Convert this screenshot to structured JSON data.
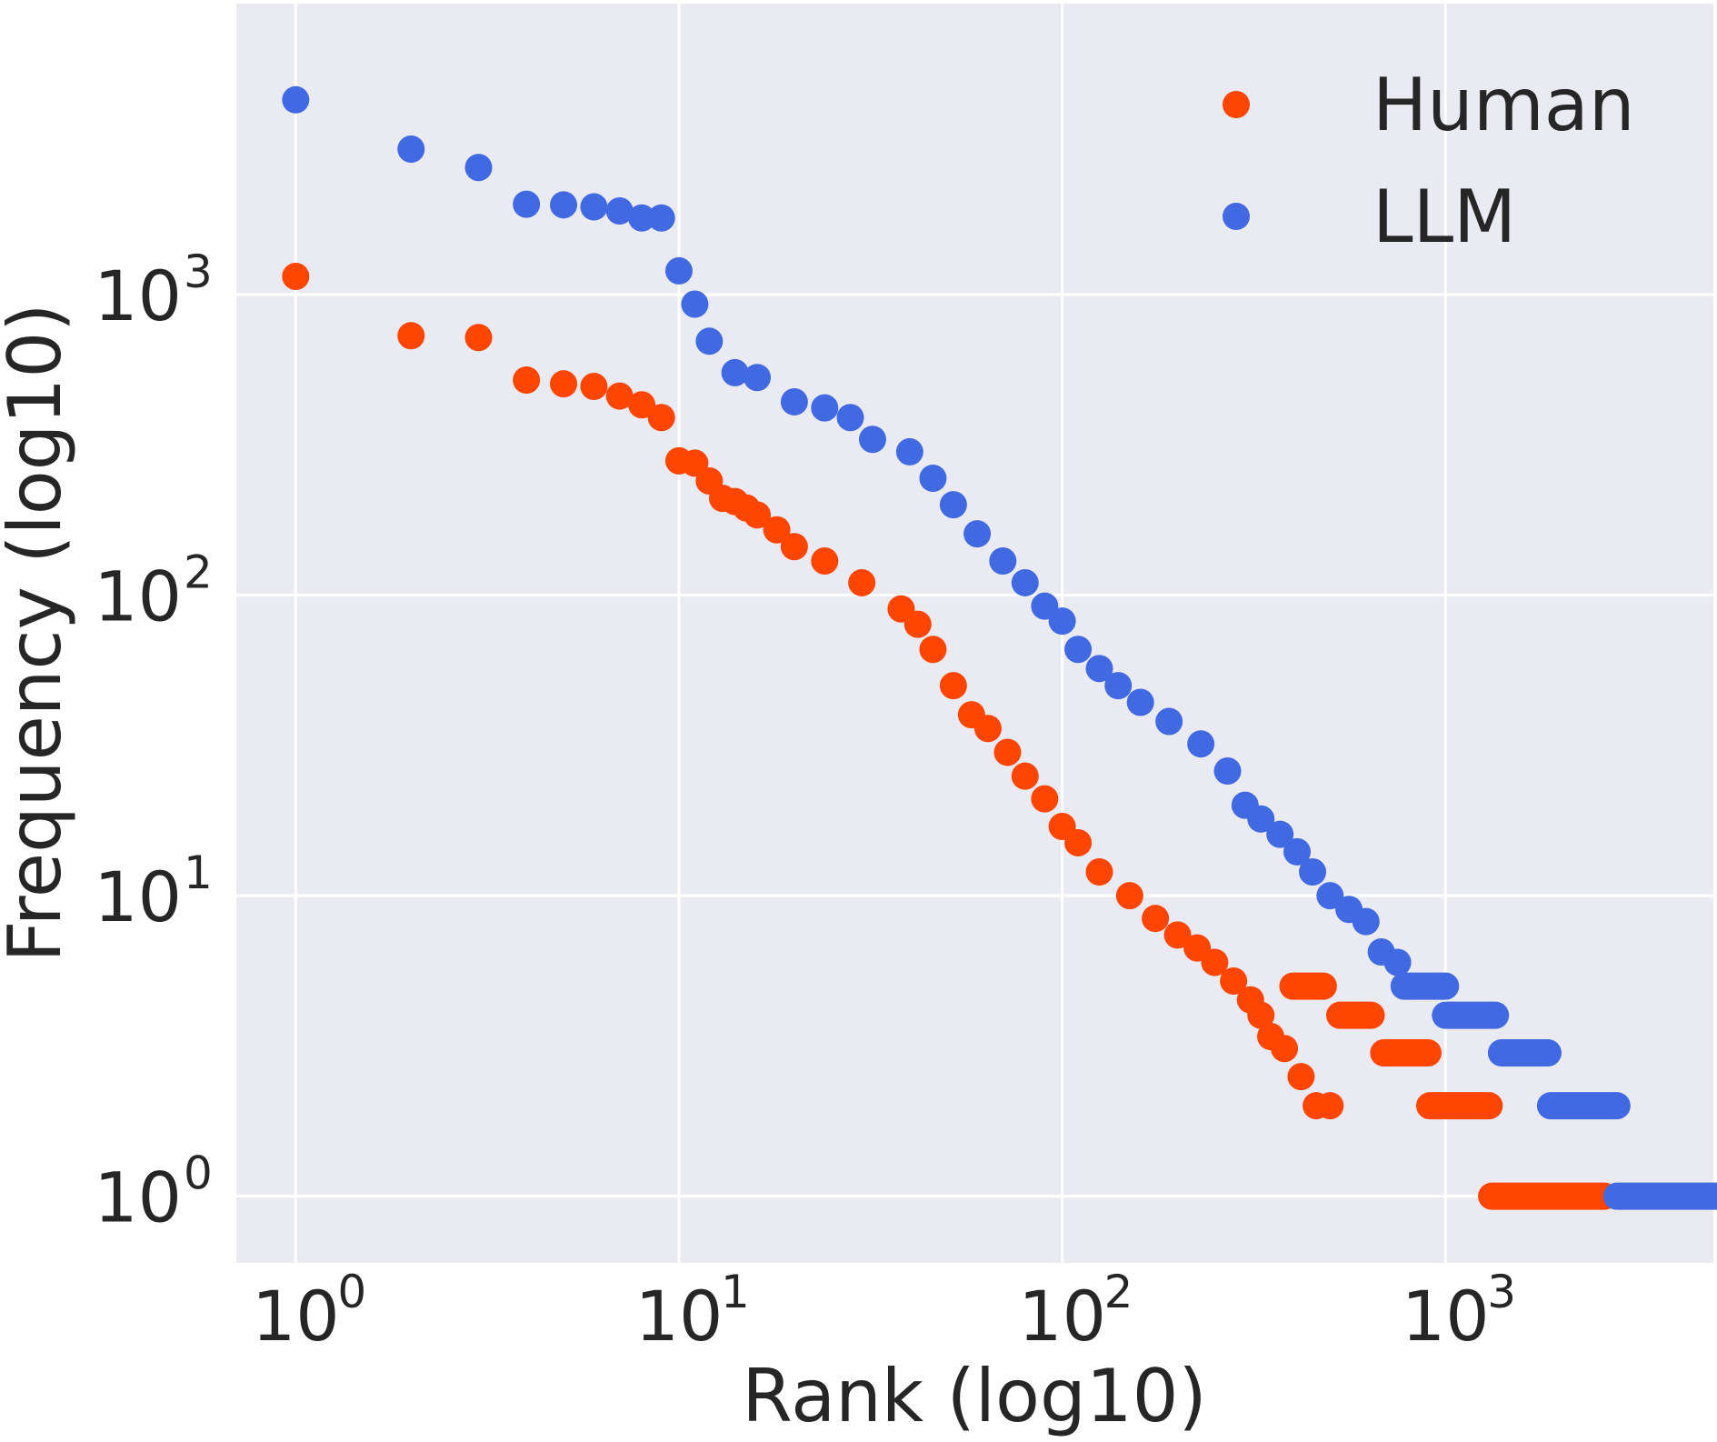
{
  "chart_data": {
    "type": "scatter",
    "xscale": "log",
    "yscale": "log",
    "xlabel": "Rank (log10)",
    "ylabel": "Frequency (log10)",
    "xlim": [
      0.7,
      5000
    ],
    "ylim": [
      0.6,
      9300
    ],
    "grid": true,
    "legend_position": "top-right",
    "xticks": [
      {
        "value": 1,
        "base": "10",
        "exp": "0"
      },
      {
        "value": 10,
        "base": "10",
        "exp": "1"
      },
      {
        "value": 100,
        "base": "10",
        "exp": "2"
      },
      {
        "value": 1000,
        "base": "10",
        "exp": "3"
      }
    ],
    "yticks": [
      {
        "value": 1,
        "base": "10",
        "exp": "0"
      },
      {
        "value": 10,
        "base": "10",
        "exp": "1"
      },
      {
        "value": 100,
        "base": "10",
        "exp": "2"
      },
      {
        "value": 1000,
        "base": "10",
        "exp": "3"
      }
    ],
    "series": [
      {
        "name": "Human",
        "color": "#FF4500",
        "points": [
          [
            1,
            1150
          ],
          [
            2,
            730
          ],
          [
            3,
            720
          ],
          [
            4,
            520
          ],
          [
            5,
            505
          ],
          [
            6,
            495
          ],
          [
            7,
            460
          ],
          [
            8,
            430
          ],
          [
            9,
            390
          ],
          [
            10,
            280
          ],
          [
            11,
            275
          ],
          [
            12,
            240
          ],
          [
            13,
            210
          ],
          [
            14,
            205
          ],
          [
            15,
            195
          ],
          [
            16,
            185
          ],
          [
            18,
            165
          ],
          [
            20,
            145
          ],
          [
            24,
            130
          ],
          [
            30,
            110
          ],
          [
            38,
            90
          ],
          [
            42,
            80
          ],
          [
            46,
            66
          ],
          [
            52,
            50
          ],
          [
            58,
            40
          ],
          [
            64,
            36
          ],
          [
            72,
            30
          ],
          [
            80,
            25
          ],
          [
            90,
            21
          ],
          [
            100,
            17
          ],
          [
            110,
            15
          ],
          [
            125,
            12
          ],
          [
            150,
            10
          ],
          [
            175,
            8.4
          ],
          [
            200,
            7.4
          ],
          [
            225,
            6.7
          ],
          [
            250,
            6
          ],
          [
            280,
            5.2
          ],
          [
            310,
            4.5
          ],
          [
            330,
            4
          ],
          [
            350,
            3.4
          ],
          [
            380,
            3.1
          ],
          [
            420,
            2.5
          ],
          [
            460,
            2
          ],
          [
            500,
            2
          ]
        ],
        "bands": [
          [
            400,
            480,
            5
          ],
          [
            530,
            640,
            4
          ],
          [
            690,
            900,
            3
          ],
          [
            910,
            1300,
            2
          ],
          [
            1320,
            2600,
            1
          ]
        ]
      },
      {
        "name": "LLM",
        "color": "#4169E1",
        "points": [
          [
            1,
            4450
          ],
          [
            2,
            3050
          ],
          [
            3,
            2650
          ],
          [
            4,
            2000
          ],
          [
            5,
            1990
          ],
          [
            6,
            1960
          ],
          [
            7,
            1900
          ],
          [
            8,
            1800
          ],
          [
            9,
            1800
          ],
          [
            10,
            1200
          ],
          [
            11,
            930
          ],
          [
            12,
            700
          ],
          [
            14,
            550
          ],
          [
            16,
            530
          ],
          [
            20,
            440
          ],
          [
            24,
            420
          ],
          [
            28,
            390
          ],
          [
            32,
            330
          ],
          [
            40,
            300
          ],
          [
            46,
            245
          ],
          [
            52,
            200
          ],
          [
            60,
            160
          ],
          [
            70,
            130
          ],
          [
            80,
            110
          ],
          [
            90,
            92
          ],
          [
            100,
            82
          ],
          [
            110,
            66
          ],
          [
            125,
            57
          ],
          [
            140,
            50
          ],
          [
            160,
            44
          ],
          [
            190,
            38
          ],
          [
            230,
            32
          ],
          [
            270,
            26
          ],
          [
            300,
            20
          ],
          [
            330,
            18
          ],
          [
            370,
            16
          ],
          [
            410,
            14
          ],
          [
            450,
            12
          ],
          [
            500,
            10
          ],
          [
            560,
            9
          ],
          [
            620,
            8.2
          ],
          [
            680,
            6.5
          ],
          [
            750,
            6
          ]
        ],
        "bands": [
          [
            780,
            1000,
            5
          ],
          [
            1000,
            1350,
            4
          ],
          [
            1400,
            1850,
            3
          ],
          [
            1880,
            2800,
            2
          ],
          [
            2800,
            5400,
            1
          ]
        ]
      }
    ]
  }
}
